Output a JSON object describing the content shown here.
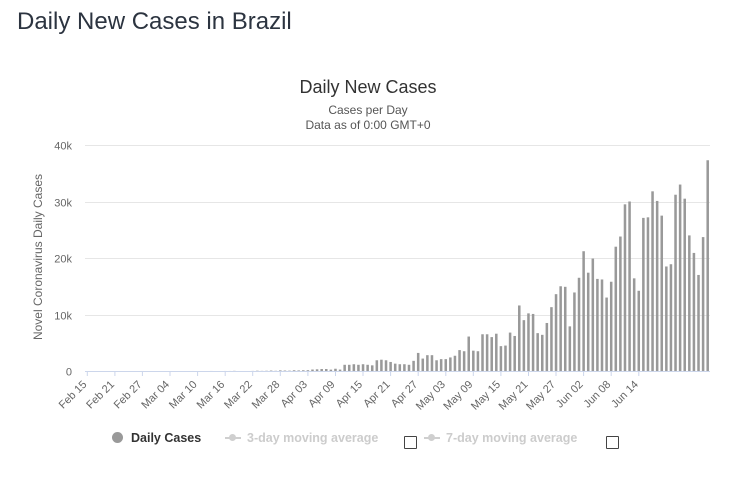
{
  "page": {
    "title": "Daily New Cases in Brazil"
  },
  "chart_data": {
    "type": "bar",
    "title": "Daily New Cases",
    "subtitle_1": "Cases per Day",
    "subtitle_2": "Data as of 0:00 GMT+0",
    "ylabel": "Novel Coronavirus Daily Cases",
    "xlabel": "",
    "ylim": [
      0,
      40000
    ],
    "y_ticks": [
      0,
      10000,
      20000,
      30000,
      40000
    ],
    "y_tick_labels": [
      "0",
      "10k",
      "20k",
      "30k",
      "40k"
    ],
    "x_tick_labels": [
      "Feb 15",
      "Feb 21",
      "Feb 27",
      "Mar 04",
      "Mar 10",
      "Mar 16",
      "Mar 22",
      "Mar 28",
      "Apr 03",
      "Apr 09",
      "Apr 15",
      "Apr 21",
      "Apr 27",
      "May 03",
      "May 09",
      "May 15",
      "May 21",
      "May 27",
      "Jun 02",
      "Jun 08",
      "Jun 14"
    ],
    "first_date": "Feb 15",
    "grid": true,
    "bar_color": "#999999",
    "series": [
      {
        "name": "Daily Cases",
        "values": [
          0,
          0,
          0,
          0,
          0,
          0,
          0,
          0,
          0,
          0,
          0,
          0,
          1,
          0,
          0,
          0,
          0,
          0,
          0,
          0,
          0,
          0,
          0,
          1,
          0,
          0,
          0,
          5,
          0,
          0,
          6,
          6,
          27,
          0,
          0,
          0,
          15,
          52,
          23,
          40,
          77,
          34,
          110,
          80,
          60,
          130,
          100,
          130,
          140,
          260,
          300,
          350,
          350,
          240,
          400,
          250,
          1100,
          1100,
          1200,
          1100,
          1200,
          1100,
          1000,
          1900,
          2000,
          1900,
          1600,
          1300,
          1200,
          1200,
          1100,
          1800,
          3200,
          2200,
          2800,
          2800,
          1900,
          2100,
          2100,
          2400,
          2700,
          3700,
          3500,
          6100,
          3600,
          3500,
          6500,
          6500,
          6000,
          6600,
          4400,
          4500,
          6800,
          6200,
          11600,
          9000,
          10200,
          10100,
          6700,
          6400,
          8500,
          11300,
          13600,
          15000,
          14900,
          7900,
          13900,
          16500,
          21200,
          17400,
          19900,
          16300,
          16200,
          13000,
          15800,
          22000,
          23800,
          29500,
          30000,
          16400,
          14200,
          27100,
          27200,
          31800,
          30100,
          27500,
          18500,
          18900,
          31200,
          33000,
          30500,
          24000,
          20900,
          17000,
          23700,
          37300
        ]
      }
    ]
  },
  "legend": {
    "items": [
      {
        "label": "Daily Cases",
        "state": "on"
      },
      {
        "label": "3-day moving average",
        "state": "off"
      },
      {
        "label": "7-day moving average",
        "state": "off"
      }
    ]
  },
  "colors": {
    "bar": "#999999",
    "title": "#333333",
    "page_title": "#2c3440",
    "grid": "#e6e6e6",
    "muted": "#cccccc"
  }
}
